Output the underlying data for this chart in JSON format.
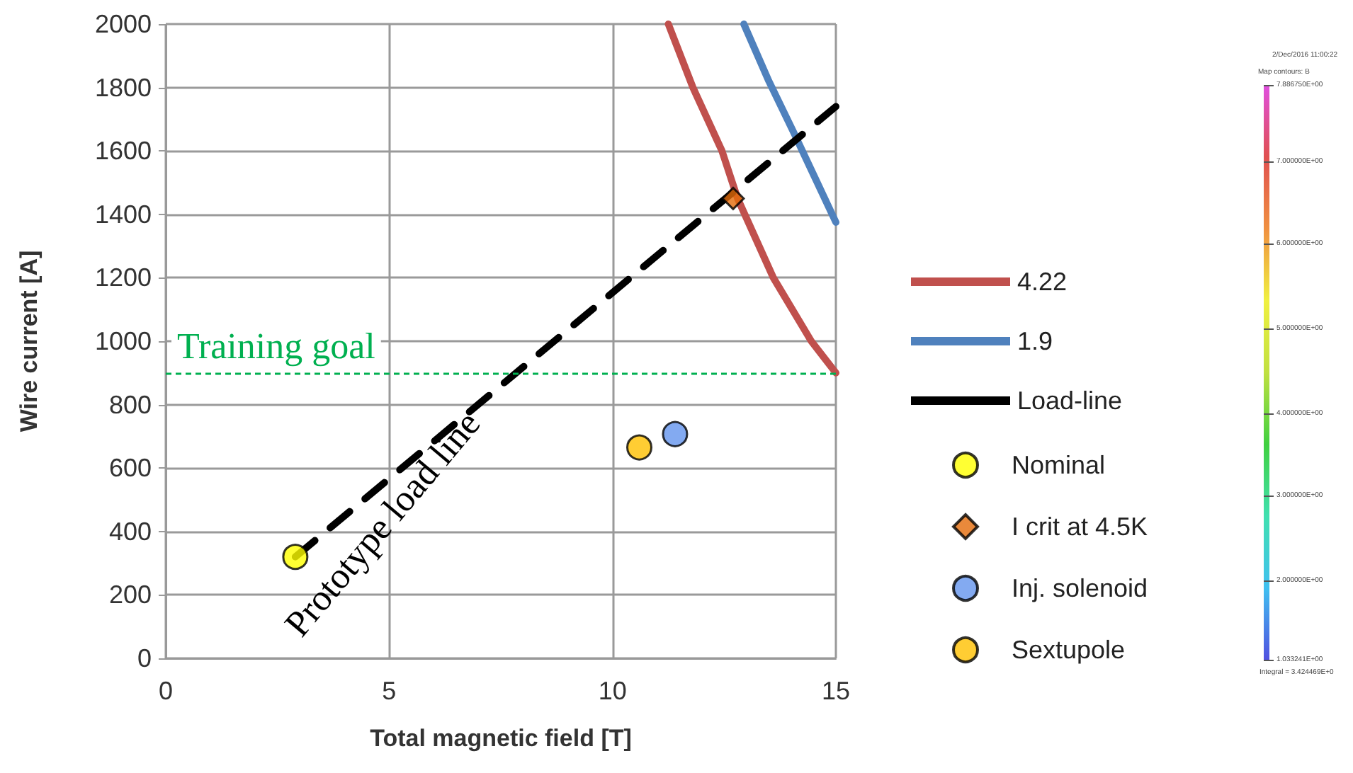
{
  "chart_data": [
    {
      "type": "line",
      "xlabel": "Total magnetic field [T]",
      "ylabel": "Wire current [A]",
      "xlim": [
        0,
        15
      ],
      "xticks": [
        0,
        5,
        10,
        15
      ],
      "ylim": [
        0,
        2000
      ],
      "yticks": [
        0,
        200,
        400,
        600,
        800,
        1000,
        1200,
        1400,
        1600,
        1800,
        2000
      ],
      "grid": true,
      "legend": "right",
      "marker": "none",
      "series": [
        {
          "name": "4.22",
          "color": "#c0504d",
          "x": [
            11.25,
            11.8,
            12.45,
            12.8,
            13.6,
            14.45,
            15
          ],
          "values": [
            2000,
            1800,
            1600,
            1450,
            1200,
            1000,
            900
          ]
        },
        {
          "name": "1.9",
          "color": "#4f81bd",
          "x": [
            12.94,
            13.5,
            14.05,
            15
          ],
          "values": [
            2000,
            1820,
            1660,
            1375
          ]
        },
        {
          "name": "Load-line",
          "color": "#000000",
          "line_style": "dashed",
          "x": [
            2.9,
            15
          ],
          "values": [
            320,
            1740
          ]
        },
        {
          "name": "Nominal",
          "type": "scatter",
          "marker": "circle",
          "color": "#ffff00",
          "x": [
            2.9
          ],
          "values": [
            320
          ]
        },
        {
          "name": "I crit at 4.5K",
          "type": "scatter",
          "marker": "diamond",
          "color": "#e46c0a",
          "x": [
            12.7
          ],
          "values": [
            1450
          ]
        },
        {
          "name": "Inj. solenoid",
          "type": "scatter",
          "marker": "circle",
          "color": "#6495ed",
          "x": [
            11.4
          ],
          "values": [
            707
          ]
        },
        {
          "name": "Sextupole",
          "type": "scatter",
          "marker": "circle",
          "color": "#ffc000",
          "x": [
            10.6
          ],
          "values": [
            665
          ]
        }
      ],
      "ref_lines": [
        {
          "axis": "y",
          "value": 900,
          "label": "Training goal",
          "color": "#00b050",
          "line_style": "dashed"
        }
      ],
      "annotations": [
        "Prototype load line"
      ]
    },
    {
      "type": "other",
      "title": "Map contours: B",
      "colors": [
        "#5050e0",
        "#40c0f0",
        "#40e0b0",
        "#40d040",
        "#c0e040",
        "#f0f040",
        "#f09040",
        "#e05050",
        "#e050e0"
      ],
      "annotations": [
        "2/Dec/2016 11:00:22",
        "7.886750E+00",
        "7.000000E+00",
        "6.000000E+00",
        "5.000000E+00",
        "4.000000E+00",
        "3.000000E+00",
        "2.000000E+00",
        "1.033241E+00",
        "Integral = 3.424469E+0"
      ]
    }
  ]
}
